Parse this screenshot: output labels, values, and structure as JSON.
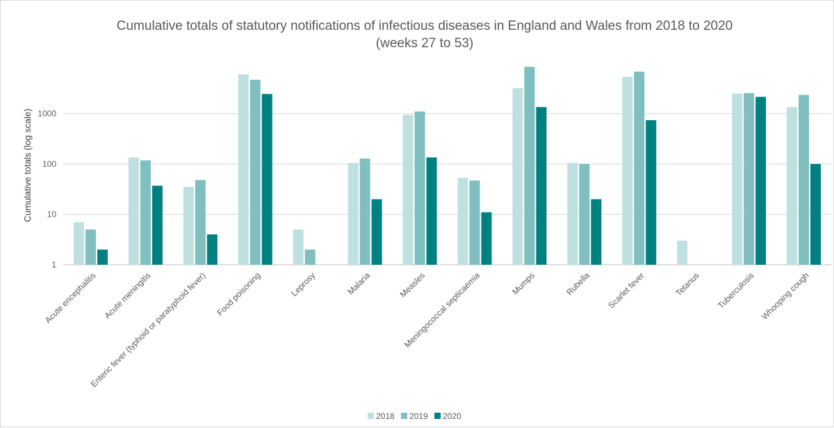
{
  "chart_data": {
    "type": "bar",
    "title": "Cumulative totals of statutory notifications of infectious diseases in England and Wales from 2018 to 2020",
    "subtitle": "(weeks 27 to 53)",
    "xlabel": "",
    "ylabel": "Cumulative totals (log scale)",
    "yscale": "log",
    "ylim": [
      1,
      10000
    ],
    "yticks": [
      "1",
      "10",
      "100",
      "1000"
    ],
    "grid": true,
    "legend": "bottom",
    "categories": [
      "Acute encephalitis",
      "Acute meningitis",
      "Enteric fever (typhoid or paratyphoid fever)",
      "Food poisoning",
      "Leprosy",
      "Malaria",
      "Measles",
      "Meningococcal septicaemia",
      "Mumps",
      "Rubella",
      "Scarlet fever",
      "Tetanus",
      "Tuberculosis",
      "Whooping cough"
    ],
    "series": [
      {
        "name": "2018",
        "color": "#bfe0e0",
        "values": [
          7,
          135,
          35,
          6000,
          5,
          105,
          950,
          53,
          3200,
          105,
          5400,
          3,
          2500,
          1350
        ]
      },
      {
        "name": "2019",
        "color": "#7fbfbf",
        "values": [
          5,
          118,
          48,
          4700,
          2,
          128,
          1100,
          47,
          8500,
          100,
          6800,
          0,
          2550,
          2350
        ]
      },
      {
        "name": "2020",
        "color": "#008080",
        "values": [
          2,
          37,
          4,
          2450,
          0,
          20,
          135,
          11,
          1350,
          20,
          740,
          0,
          2150,
          100
        ]
      }
    ]
  }
}
